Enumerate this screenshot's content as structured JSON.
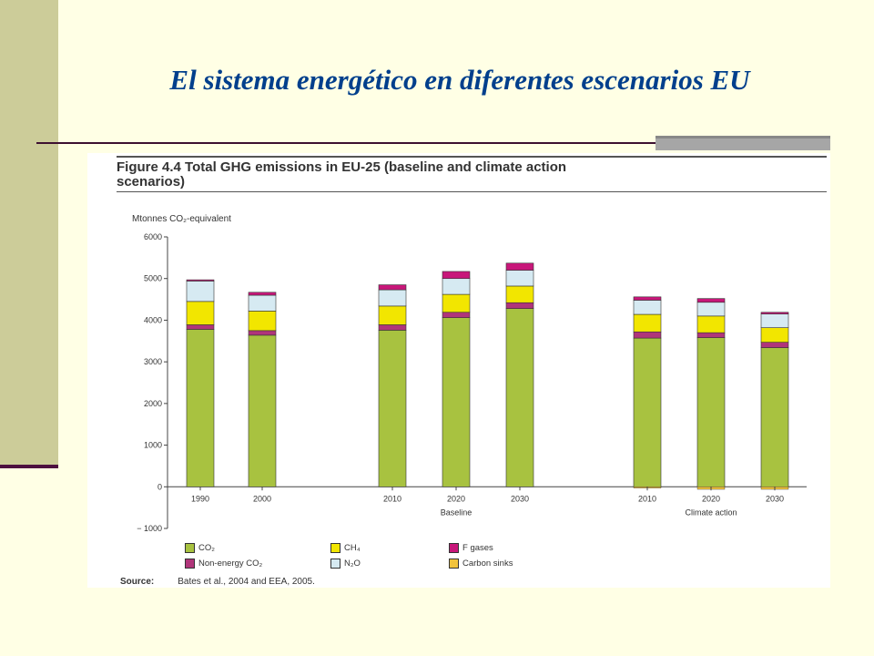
{
  "slide": {
    "title": "El sistema energético en diferentes escenarios EU"
  },
  "figure": {
    "caption": "Figure 4.4  Total GHG emissions in EU-25 (baseline and climate action\nscenarios)",
    "unit_label": "Mtonnes CO₂-equivalent",
    "source_label": "Source:",
    "source_text": "Bates et al., 2004 and EEA, 2005."
  },
  "chart_data": {
    "type": "bar",
    "stacked": true,
    "title": "Figure 4.4 Total GHG emissions in EU-25 (baseline and climate action scenarios)",
    "ylabel": "Mtonnes CO₂-equivalent",
    "ylim": [
      -1000,
      6000
    ],
    "yticks": [
      -1000,
      0,
      1000,
      2000,
      3000,
      4000,
      5000,
      6000
    ],
    "ytick_labels": [
      "− 1000",
      "0",
      "1000",
      "2000",
      "3000",
      "4000",
      "5000",
      "6000"
    ],
    "categories": [
      "1990",
      "2000",
      "2010",
      "2020",
      "2030",
      "2010",
      "2020",
      "2030"
    ],
    "groups": [
      {
        "label": "",
        "indices": [
          0,
          1
        ]
      },
      {
        "label": "Baseline",
        "indices": [
          2,
          3,
          4
        ]
      },
      {
        "label": "Climate action",
        "indices": [
          5,
          6,
          7
        ]
      }
    ],
    "series": [
      {
        "name": "CO₂",
        "color": "#a8c240",
        "values": [
          3780,
          3640,
          3760,
          4060,
          4280,
          3570,
          3580,
          3340
        ]
      },
      {
        "name": "Non-energy CO₂",
        "color": "#b0357a",
        "values": [
          110,
          110,
          130,
          130,
          140,
          150,
          120,
          130
        ]
      },
      {
        "name": "CH₄",
        "color": "#f2e600",
        "values": [
          560,
          470,
          450,
          430,
          400,
          420,
          400,
          350
        ]
      },
      {
        "name": "N₂O",
        "color": "#d6eaf2",
        "values": [
          490,
          380,
          390,
          380,
          380,
          340,
          330,
          330
        ]
      },
      {
        "name": "F gases",
        "color": "#c8177a",
        "values": [
          30,
          70,
          120,
          170,
          170,
          80,
          90,
          40
        ]
      },
      {
        "name": "Carbon sinks",
        "color": "#f2c33c",
        "values": [
          0,
          0,
          0,
          0,
          0,
          -30,
          -60,
          -60
        ]
      }
    ],
    "legend_position": "bottom",
    "grid": false
  }
}
